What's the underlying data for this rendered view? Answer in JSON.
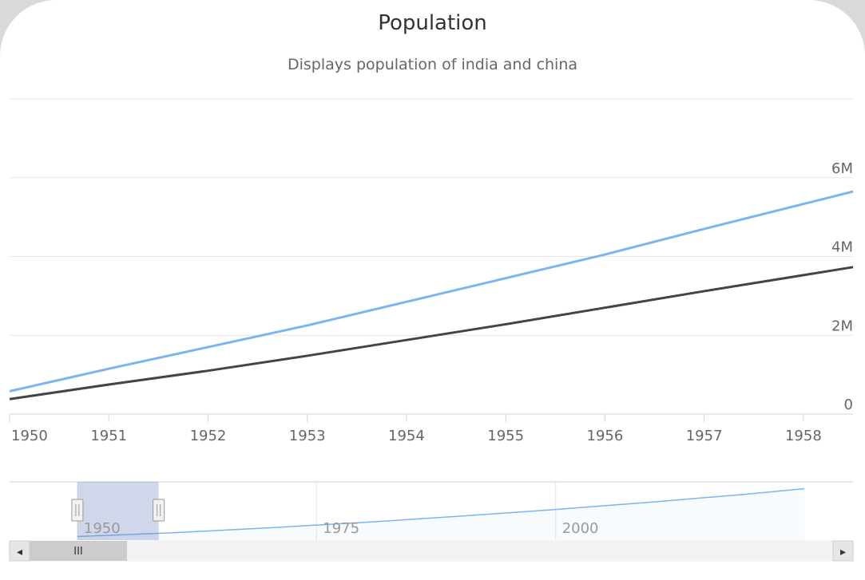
{
  "chart_data": {
    "type": "line",
    "title": "Population",
    "subtitle": "Displays population of india and china",
    "xlabel": "",
    "ylabel": "",
    "x": [
      1950,
      1951,
      1952,
      1953,
      1954,
      1955,
      1956,
      1957,
      1958.5
    ],
    "xlim": [
      1950,
      1958.5
    ],
    "ylim": [
      0,
      8000000
    ],
    "x_ticks": [
      "1950",
      "1951",
      "1952",
      "1953",
      "1954",
      "1955",
      "1956",
      "1957",
      "1958"
    ],
    "y_ticks": [
      {
        "value": 0,
        "label": "0"
      },
      {
        "value": 2000000,
        "label": "2M"
      },
      {
        "value": 4000000,
        "label": "4M"
      },
      {
        "value": 6000000,
        "label": "6M"
      }
    ],
    "grid": true,
    "y_axis_side": "right",
    "series": [
      {
        "color": "#7cb5ec",
        "values": [
          580000,
          1150000,
          1700000,
          2250000,
          2850000,
          3450000,
          4050000,
          4700000,
          5650000
        ]
      },
      {
        "color": "#434348",
        "values": [
          380000,
          750000,
          1100000,
          1480000,
          1880000,
          2280000,
          2700000,
          3120000,
          3730000
        ]
      }
    ],
    "navigator": {
      "range": [
        1945,
        2029
      ],
      "selection": [
        1950,
        1958.5
      ],
      "tick_labels": [
        {
          "value": 1950,
          "label": "1950"
        },
        {
          "value": 1975,
          "label": "1975"
        },
        {
          "value": 2000,
          "label": "2000"
        }
      ],
      "series": {
        "color": "#7cb5ec",
        "x": [
          1950,
          1960,
          1970,
          1980,
          1990,
          2000,
          2010,
          2020,
          2026
        ],
        "values": [
          580000,
          1200000,
          2000000,
          2900000,
          3900000,
          5000000,
          6200000,
          7500000,
          8400000
        ],
        "ylim": [
          0,
          9500000
        ]
      }
    }
  },
  "scrollbar": {
    "left_arrow": "◂",
    "right_arrow": "▸",
    "grip": "III"
  },
  "handles": {
    "grip": "||"
  }
}
